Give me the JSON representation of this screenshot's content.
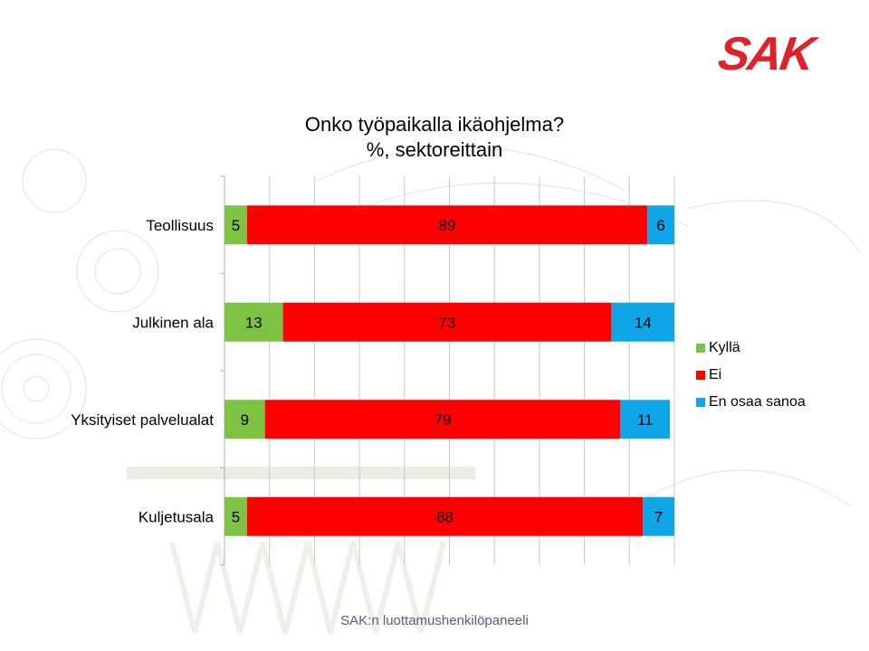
{
  "logo": "SAK",
  "header": {
    "title_line1": "Onko työpaikalla ikäohjelma?",
    "title_line2": "%, sektoreittain"
  },
  "footer": "SAK:n luottamushenkilöpaneeli",
  "colors": {
    "Kyllä": "#7dc242",
    "Ei": "#ff0000",
    "En osaa sanoa": "#0ea6e6",
    "brand": "#e2202a"
  },
  "chart_data": {
    "type": "bar",
    "orientation": "horizontal",
    "stacked": true,
    "categories": [
      "Teollisuus",
      "Julkinen ala",
      "Yksityiset palvelualat",
      "Kuljetusala"
    ],
    "series": [
      {
        "name": "Kyllä",
        "values": [
          5,
          13,
          9,
          5
        ]
      },
      {
        "name": "Ei",
        "values": [
          89,
          73,
          79,
          88
        ]
      },
      {
        "name": "En osaa sanoa",
        "values": [
          6,
          14,
          11,
          7
        ]
      }
    ],
    "xlim": [
      0,
      100
    ],
    "grid": true,
    "legend_position": "right"
  }
}
